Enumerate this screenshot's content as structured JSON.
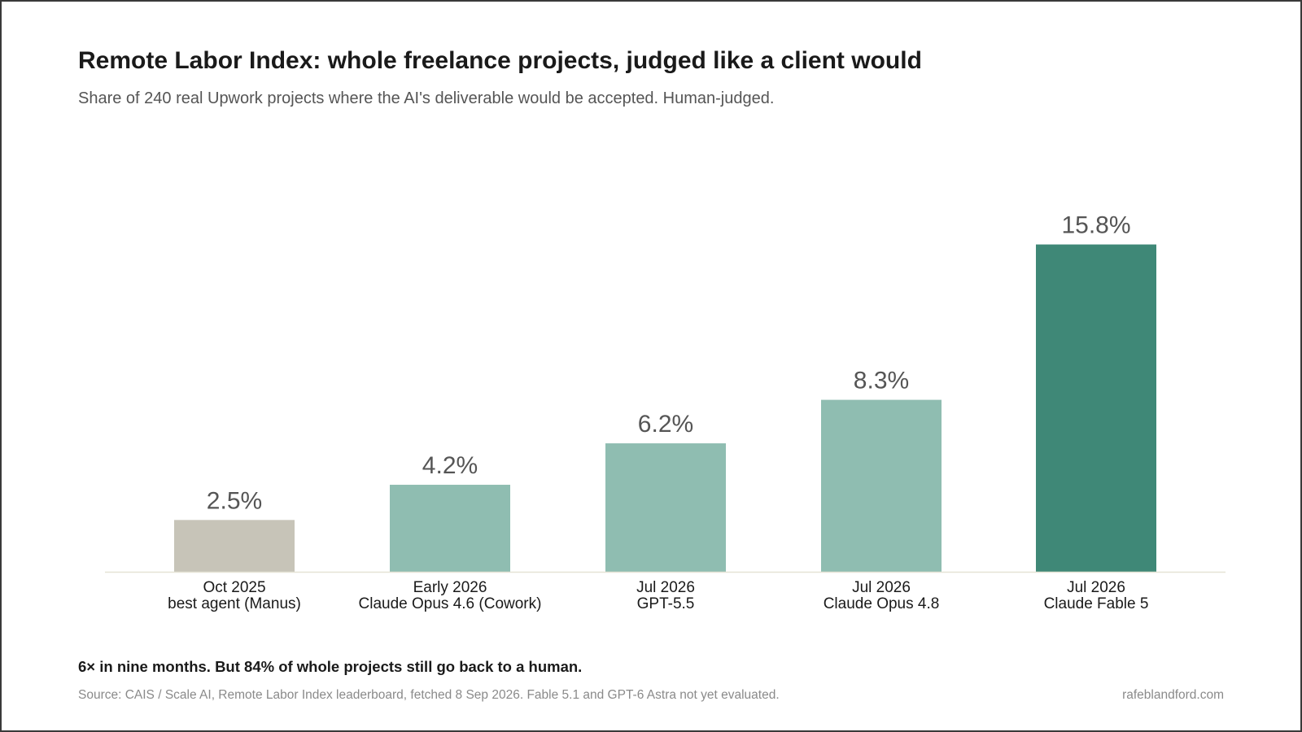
{
  "header": {
    "title": "Remote Labor Index: whole freelance projects, judged like a client would",
    "subtitle": "Share of 240 real Upwork projects where the AI's deliverable would be accepted. Human-judged."
  },
  "footer": {
    "takeaway": "6× in nine months. But 84% of whole projects still go back to a human.",
    "source": "Source: CAIS / Scale AI, Remote Labor Index leaderboard, fetched 8 Sep 2026. Fable 5.1 and GPT-6 Astra not yet evaluated.",
    "credit": "rafeblandford.com"
  },
  "chart_data": {
    "type": "bar",
    "title": "Remote Labor Index: whole freelance projects, judged like a client would",
    "subtitle": "Share of 240 real Upwork projects where the AI's deliverable would be accepted. Human-judged.",
    "xlabel": "",
    "ylabel": "",
    "ylim": [
      0,
      17
    ],
    "grid": false,
    "legend": "none",
    "categories": [
      {
        "date": "Oct 2025",
        "model": "best agent (Manus)"
      },
      {
        "date": "Early 2026",
        "model": "Claude Opus 4.6 (Cowork)"
      },
      {
        "date": "Jul 2026",
        "model": "GPT-5.5"
      },
      {
        "date": "Jul 2026",
        "model": "Claude Opus 4.8"
      },
      {
        "date": "Jul 2026",
        "model": "Claude Fable 5"
      }
    ],
    "values": [
      2.5,
      4.2,
      6.2,
      8.3,
      15.8
    ],
    "data_labels": [
      "2.5%",
      "4.2%",
      "6.2%",
      "8.3%",
      "15.8%"
    ],
    "colors": [
      "#c7c4b8",
      "#8fbdb1",
      "#8fbdb1",
      "#8fbdb1",
      "#3f8877"
    ],
    "baseline_color": "#e6e3d6",
    "label_color": "#555555",
    "category_color": "#1a1a1a"
  }
}
